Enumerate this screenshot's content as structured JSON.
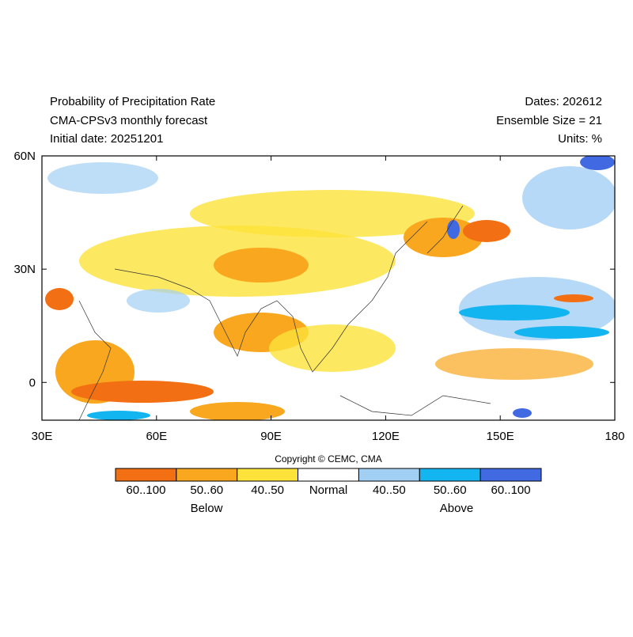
{
  "header": {
    "title": "Probability of Precipitation Rate",
    "model": "CMA-CPSv3 monthly forecast",
    "initial": "Initial date: 20251201",
    "dates": "Dates: 202612",
    "ensemble": "Ensemble Size = 21",
    "units": "Units: %"
  },
  "map": {
    "lonlim": [
      30,
      180
    ],
    "latlim": [
      -10,
      60
    ],
    "lonticks": [
      {
        "value": 30,
        "label": "30E"
      },
      {
        "value": 60,
        "label": "60E"
      },
      {
        "value": 90,
        "label": "90E"
      },
      {
        "value": 120,
        "label": "120E"
      },
      {
        "value": 150,
        "label": "150E"
      },
      {
        "value": 180,
        "label": "180"
      }
    ],
    "latticks": [
      {
        "value": 60,
        "label": "60N"
      },
      {
        "value": 30,
        "label": "30N"
      },
      {
        "value": 0,
        "label": "0"
      }
    ]
  },
  "copyright": "Copyright © CEMC, CMA",
  "legend": {
    "items": [
      {
        "label": "60..100",
        "color": "#f36f13"
      },
      {
        "label": "50..60",
        "color": "#f9a71e"
      },
      {
        "label": "40..50",
        "color": "#fde23a"
      },
      {
        "label": "Normal",
        "color": "#ffffff"
      },
      {
        "label": "40..50",
        "color": "#a2d0f5"
      },
      {
        "label": "50..60",
        "color": "#12b5ef"
      },
      {
        "label": "60..100",
        "color": "#4169e1"
      }
    ],
    "below": "Below",
    "above": "Above"
  }
}
